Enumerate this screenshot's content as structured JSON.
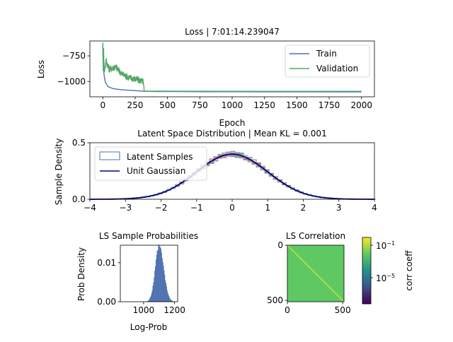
{
  "chart_data": [
    {
      "type": "line",
      "title": "Loss | 7:01:14.239047",
      "xlabel": "Epoch",
      "ylabel": "Loss",
      "xlim": [
        -100,
        2100
      ],
      "ylim": [
        -1150,
        -605
      ],
      "xticks": [
        "0",
        "250",
        "500",
        "750",
        "1000",
        "1250",
        "1500",
        "1750",
        "2000"
      ],
      "yticks": [
        "−750",
        "−1000"
      ],
      "legend": "top-right",
      "series": [
        {
          "name": "Train",
          "color": "#4c72b0",
          "x": [
            0,
            2,
            5,
            10,
            20,
            40,
            80,
            150,
            250,
            320,
            400,
            800,
            1200,
            1600,
            2000
          ],
          "values": [
            -640,
            -800,
            -860,
            -940,
            -1010,
            -1050,
            -1070,
            -1082,
            -1090,
            -1095,
            -1098,
            -1100,
            -1101,
            -1101,
            -1102
          ]
        },
        {
          "name": "Validation",
          "color": "#55a868",
          "x": [
            0,
            3,
            6,
            12,
            25,
            50,
            100,
            150,
            200,
            260,
            310,
            320,
            500,
            1000,
            1500,
            2000
          ],
          "values": [
            -620,
            -870,
            -690,
            -900,
            -800,
            -880,
            -860,
            -930,
            -960,
            -980,
            -1000,
            -1095,
            -1095,
            -1096,
            -1096,
            -1096
          ]
        }
      ]
    },
    {
      "type": "line",
      "title": "Latent Space Distribution | Mean KL = 0.001",
      "xlabel": "",
      "ylabel": "Sample Density",
      "xlim": [
        -4,
        4
      ],
      "ylim": [
        0,
        0.5
      ],
      "xticks": [
        "−4",
        "−3",
        "−2",
        "−1",
        "0",
        "1",
        "2",
        "3",
        "4"
      ],
      "yticks": [
        "0.0",
        "0.5"
      ],
      "legend": "top-left",
      "series": [
        {
          "name": "Latent Samples",
          "color": "#4c72b0",
          "style": "step-histograms"
        },
        {
          "name": "Unit Gaussian",
          "color": "#000080",
          "function": "standard normal pdf"
        }
      ]
    },
    {
      "type": "bar",
      "title": "LS Sample Probabilities",
      "xlabel": "Log-Prob",
      "ylabel": "Prob Density",
      "xlim": [
        850,
        1220
      ],
      "ylim": [
        0,
        0.0145
      ],
      "xticks": [
        "1000",
        "1200"
      ],
      "yticks": [
        "0.00",
        "0.01"
      ],
      "color": "#4c72b0",
      "distribution": {
        "mean": 1100,
        "std": 28
      }
    },
    {
      "type": "heatmap",
      "title": "LS Correlation",
      "xlabel": "",
      "ylabel": "",
      "xlim": [
        0,
        512
      ],
      "ylim": [
        512,
        0
      ],
      "xticks": [
        "0",
        "500"
      ],
      "yticks": [
        "0",
        "500"
      ],
      "colorbar": {
        "label": "corr coeff",
        "scale": "log",
        "ticks": [
          "10",
          "10"
        ],
        "tick_exponents": [
          "−1",
          "−5"
        ]
      }
    }
  ]
}
